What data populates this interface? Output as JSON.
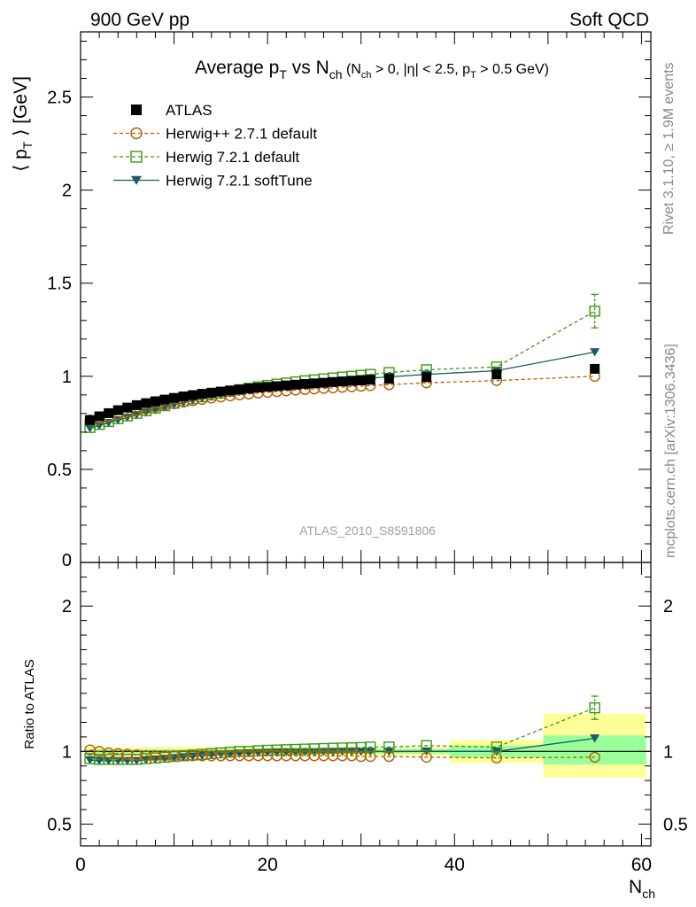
{
  "header": {
    "left": "900 GeV pp",
    "right": "Soft QCD"
  },
  "title": {
    "main": "Average p",
    "main_sub": "T",
    "vs": " vs N",
    "vs_sub": "ch",
    "cuts_open": " (N",
    "cuts_sub1": "ch",
    "cuts_mid1": " > 0, |η| < 2.5, p",
    "cuts_sub2": "T",
    "cuts_end": " > 0.5 GeV)"
  },
  "side_labels": {
    "rivet": "Rivet 3.1.10, ≥ 1.9M events",
    "mcplots": "mcplots.cern.ch [arXiv:1306.3436]"
  },
  "analysis_id": "ATLAS_2010_S8591806",
  "chart_data": [
    {
      "type": "scatter",
      "panel": "main",
      "ylabel": "⟨ p_T ⟩ [GeV]",
      "ylim": [
        0,
        2.85
      ],
      "xlim": [
        0,
        61
      ],
      "y_ticks": [
        0.5,
        1,
        1.5,
        2,
        2.5
      ],
      "y_tick_labels": [
        "0.5",
        "1",
        "1.5",
        "2",
        "2.5"
      ],
      "legend_position": "top-left",
      "x": [
        1,
        2,
        3,
        4,
        5,
        6,
        7,
        8,
        9,
        10,
        11,
        12,
        13,
        14,
        15,
        16,
        17,
        18,
        19,
        20,
        21,
        22,
        23,
        24,
        25,
        26,
        27,
        28,
        29,
        30,
        31,
        33,
        37,
        44.5,
        55
      ],
      "series": [
        {
          "name": "ATLAS",
          "color": "#000000",
          "marker": "filled-square",
          "values": [
            0.765,
            0.785,
            0.802,
            0.818,
            0.832,
            0.845,
            0.856,
            0.866,
            0.875,
            0.884,
            0.892,
            0.899,
            0.906,
            0.912,
            0.918,
            0.924,
            0.929,
            0.934,
            0.939,
            0.943,
            0.947,
            0.951,
            0.955,
            0.959,
            0.962,
            0.965,
            0.969,
            0.972,
            0.975,
            0.978,
            0.981,
            0.986,
            0.995,
            1.01,
            1.04
          ]
        },
        {
          "name": "Herwig++ 2.7.1 default",
          "color": "#b85c00",
          "marker": "open-circle",
          "line": "dashed",
          "values": [
            0.765,
            0.775,
            0.785,
            0.795,
            0.805,
            0.815,
            0.825,
            0.835,
            0.845,
            0.853,
            0.862,
            0.869,
            0.876,
            0.883,
            0.889,
            0.895,
            0.9,
            0.905,
            0.91,
            0.914,
            0.918,
            0.922,
            0.926,
            0.929,
            0.932,
            0.935,
            0.938,
            0.941,
            0.944,
            0.947,
            0.95,
            0.955,
            0.965,
            0.977,
            1.0
          ]
        },
        {
          "name": "Herwig 7.2.1 default",
          "color": "#3a9a10",
          "marker": "open-square",
          "line": "dashed",
          "values": [
            0.725,
            0.741,
            0.757,
            0.772,
            0.787,
            0.801,
            0.815,
            0.829,
            0.842,
            0.855,
            0.867,
            0.879,
            0.89,
            0.9,
            0.91,
            0.919,
            0.928,
            0.936,
            0.944,
            0.951,
            0.958,
            0.964,
            0.97,
            0.976,
            0.981,
            0.986,
            0.991,
            0.996,
            1.0,
            1.005,
            1.01,
            1.02,
            1.035,
            1.05,
            1.35
          ],
          "errors_last": [
            1.26,
            1.44
          ]
        },
        {
          "name": "Herwig 7.2.1 softTune",
          "color": "#1c5a6a",
          "marker": "filled-triangle-down",
          "line": "solid",
          "values": [
            0.72,
            0.735,
            0.75,
            0.764,
            0.778,
            0.792,
            0.806,
            0.82,
            0.833,
            0.846,
            0.858,
            0.869,
            0.88,
            0.89,
            0.899,
            0.908,
            0.916,
            0.924,
            0.931,
            0.938,
            0.944,
            0.95,
            0.955,
            0.96,
            0.965,
            0.97,
            0.974,
            0.978,
            0.982,
            0.986,
            0.99,
            0.997,
            1.01,
            1.03,
            1.13
          ]
        }
      ]
    },
    {
      "type": "scatter",
      "panel": "ratio",
      "ylabel": "Ratio to ATLAS",
      "xlabel": "N_ch",
      "ylim": [
        0.35,
        2.3
      ],
      "xlim": [
        0,
        61
      ],
      "x_ticks": [
        0,
        20,
        40,
        60
      ],
      "x_tick_labels": [
        "0",
        "20",
        "40",
        "60"
      ],
      "y_ticks": [
        0.5,
        1,
        2
      ],
      "y_tick_labels": [
        "0.5",
        "1",
        "2"
      ],
      "bands": [
        {
          "x0": 0.5,
          "x1": 39.5,
          "inner": [
            0.985,
            1.015
          ],
          "outer": [
            0.97,
            1.03
          ]
        },
        {
          "x0": 39.5,
          "x1": 49.5,
          "inner": [
            0.96,
            1.04
          ],
          "outer": [
            0.92,
            1.08
          ]
        },
        {
          "x0": 49.5,
          "x1": 60.5,
          "inner": [
            0.91,
            1.11
          ],
          "outer": [
            0.82,
            1.26
          ]
        }
      ],
      "x": [
        1,
        2,
        3,
        4,
        5,
        6,
        7,
        8,
        9,
        10,
        11,
        12,
        13,
        14,
        15,
        16,
        17,
        18,
        19,
        20,
        21,
        22,
        23,
        24,
        25,
        26,
        27,
        28,
        29,
        30,
        31,
        33,
        37,
        44.5,
        55
      ],
      "series": [
        {
          "name": "Herwig++ 2.7.1 default",
          "color": "#b85c00",
          "marker": "open-circle",
          "line": "dashed",
          "values": [
            1.01,
            1.0,
            0.99,
            0.985,
            0.98,
            0.975,
            0.97,
            0.97,
            0.97,
            0.97,
            0.97,
            0.97,
            0.97,
            0.97,
            0.97,
            0.97,
            0.97,
            0.97,
            0.97,
            0.97,
            0.97,
            0.97,
            0.97,
            0.97,
            0.97,
            0.97,
            0.97,
            0.97,
            0.97,
            0.965,
            0.965,
            0.965,
            0.96,
            0.955,
            0.96
          ]
        },
        {
          "name": "Herwig 7.2.1 default",
          "color": "#3a9a10",
          "marker": "open-square",
          "line": "dashed",
          "values": [
            0.95,
            0.945,
            0.945,
            0.945,
            0.945,
            0.945,
            0.95,
            0.955,
            0.96,
            0.965,
            0.97,
            0.975,
            0.98,
            0.985,
            0.99,
            0.995,
            1.0,
            1.0,
            1.005,
            1.008,
            1.01,
            1.012,
            1.014,
            1.016,
            1.018,
            1.02,
            1.022,
            1.024,
            1.025,
            1.027,
            1.03,
            1.03,
            1.04,
            1.03,
            1.3
          ],
          "errors_last": [
            1.22,
            1.38
          ]
        },
        {
          "name": "Herwig 7.2.1 softTune",
          "color": "#1c5a6a",
          "marker": "filled-triangle-down",
          "line": "solid",
          "values": [
            0.94,
            0.935,
            0.935,
            0.935,
            0.935,
            0.935,
            0.94,
            0.945,
            0.95,
            0.955,
            0.96,
            0.965,
            0.97,
            0.975,
            0.98,
            0.982,
            0.985,
            0.988,
            0.99,
            0.992,
            0.994,
            0.995,
            0.995,
            0.996,
            0.996,
            0.997,
            0.997,
            0.998,
            0.998,
            0.998,
            0.999,
            0.999,
            1.0,
            1.0,
            1.09
          ]
        }
      ]
    }
  ]
}
